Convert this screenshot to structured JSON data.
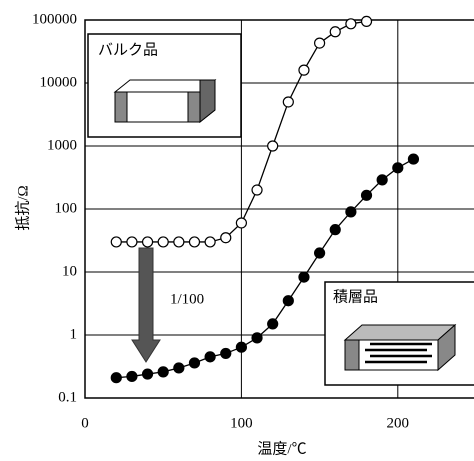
{
  "chart_data": {
    "type": "line",
    "x_label": "温度/℃",
    "y_label": "抵抗/Ω",
    "xlim": [
      0,
      250
    ],
    "xticks": [
      0,
      100,
      200
    ],
    "ylim": [
      0.1,
      100000
    ],
    "yticks": [
      0.1,
      1,
      10,
      100,
      1000,
      10000,
      100000
    ],
    "log_y": true,
    "grid": true,
    "series": [
      {
        "name": "バルク品",
        "color": "#000000",
        "marker_fill": "#ffffff",
        "x": [
          20,
          30,
          40,
          50,
          60,
          70,
          80,
          90,
          100,
          110,
          120,
          130,
          140,
          150,
          160,
          170,
          180
        ],
        "values": [
          30,
          30,
          30,
          30,
          30,
          30,
          30,
          35,
          60,
          200,
          1000,
          5000,
          16000,
          43000,
          65000,
          87000,
          95000
        ]
      },
      {
        "name": "積層品",
        "color": "#000000",
        "marker_fill": "#000000",
        "x": [
          20,
          30,
          40,
          50,
          60,
          70,
          80,
          90,
          100,
          110,
          120,
          130,
          140,
          150,
          160,
          170,
          180,
          190,
          200,
          210
        ],
        "values": [
          0.21,
          0.22,
          0.24,
          0.26,
          0.3,
          0.36,
          0.45,
          0.51,
          0.64,
          0.9,
          1.5,
          3.5,
          8.3,
          20,
          47,
          90,
          165,
          290,
          450,
          620
        ]
      }
    ],
    "annotations": [
      "1/100"
    ]
  }
}
